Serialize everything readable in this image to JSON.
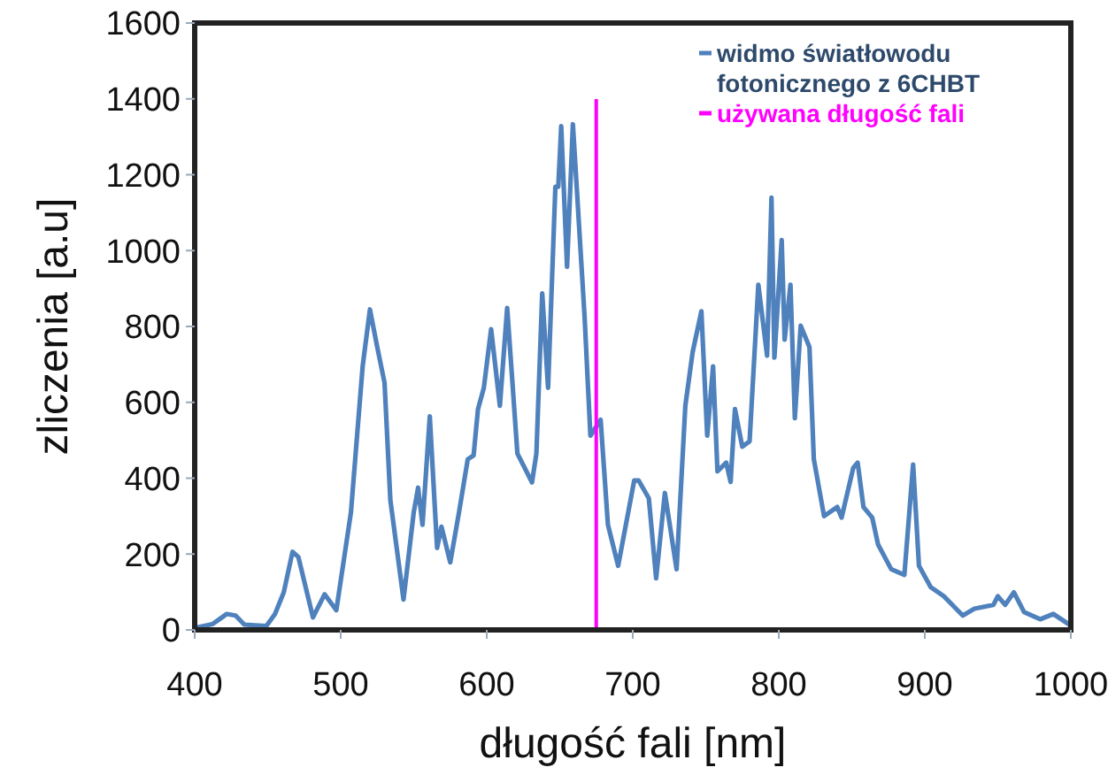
{
  "chart_data": {
    "type": "line",
    "xlabel": "długość fali [nm]",
    "ylabel": "zliczenia [a.u]",
    "xlim": [
      400,
      1000
    ],
    "ylim": [
      0,
      1600
    ],
    "xticks": [
      400,
      500,
      600,
      700,
      800,
      900,
      1000
    ],
    "yticks": [
      0,
      200,
      400,
      600,
      800,
      1000,
      1200,
      1400,
      1600
    ],
    "grid": false,
    "legend": "top right",
    "marker": "none",
    "line_style": "solid",
    "series": [
      {
        "name": "widmo światłowodu fotonicznego z 6CHBT",
        "color": "#4f81bd",
        "x": [
          400,
          412,
          422,
          428,
          434,
          449,
          455,
          461,
          467,
          471,
          481,
          489,
          497,
          507,
          515,
          520,
          525,
          530,
          534,
          543,
          550,
          553,
          556,
          561,
          566,
          569,
          575,
          581,
          587,
          591,
          594,
          598,
          603,
          609,
          614,
          621,
          631,
          634,
          638,
          642,
          647,
          649,
          651,
          655,
          659,
          665,
          667,
          671,
          678,
          683,
          690,
          701,
          704,
          711,
          716,
          722,
          730,
          736,
          741,
          747,
          751,
          755,
          758,
          764,
          767,
          770,
          775,
          780,
          786,
          792,
          795,
          797,
          802,
          804,
          808,
          811,
          815,
          821,
          824,
          831,
          840,
          843,
          851,
          854,
          858,
          864,
          868,
          877,
          886,
          892,
          896,
          904,
          913,
          926,
          934,
          947,
          950,
          955,
          961,
          968,
          979,
          988,
          999
        ],
        "values": [
          5,
          15,
          42,
          38,
          14,
          10,
          42,
          99,
          206,
          192,
          33,
          94,
          52,
          310,
          694,
          845,
          746,
          652,
          342,
          80,
          310,
          375,
          277,
          563,
          216,
          272,
          178,
          310,
          450,
          460,
          582,
          638,
          793,
          591,
          849,
          465,
          389,
          465,
          887,
          638,
          1168,
          1168,
          1328,
          957,
          1333,
          953,
          826,
          512,
          554,
          277,
          169,
          394,
          394,
          347,
          136,
          361,
          160,
          591,
          732,
          840,
          512,
          695,
          418,
          441,
          390,
          582,
          483,
          497,
          910,
          723,
          1140,
          718,
          1028,
          765,
          910,
          558,
          802,
          746,
          450,
          300,
          324,
          296,
          427,
          441,
          324,
          296,
          225,
          160,
          145,
          436,
          169,
          113,
          89,
          38,
          56,
          66,
          89,
          66,
          99,
          47,
          28,
          42,
          14
        ]
      }
    ],
    "ref_lines": [
      {
        "axis": "x",
        "value": 675,
        "label": "używana długość fali",
        "color": "#ff00ff",
        "line_style": "solid"
      }
    ]
  }
}
